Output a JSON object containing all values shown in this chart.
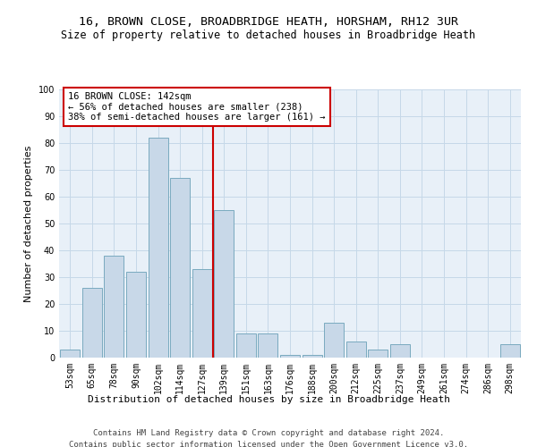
{
  "title1": "16, BROWN CLOSE, BROADBRIDGE HEATH, HORSHAM, RH12 3UR",
  "title2": "Size of property relative to detached houses in Broadbridge Heath",
  "xlabel": "Distribution of detached houses by size in Broadbridge Heath",
  "ylabel": "Number of detached properties",
  "categories": [
    "53sqm",
    "65sqm",
    "78sqm",
    "90sqm",
    "102sqm",
    "114sqm",
    "127sqm",
    "139sqm",
    "151sqm",
    "163sqm",
    "176sqm",
    "188sqm",
    "200sqm",
    "212sqm",
    "225sqm",
    "237sqm",
    "249sqm",
    "261sqm",
    "274sqm",
    "286sqm",
    "298sqm"
  ],
  "values": [
    3,
    26,
    38,
    32,
    82,
    67,
    33,
    55,
    9,
    9,
    1,
    1,
    13,
    6,
    3,
    5,
    0,
    0,
    0,
    0,
    5
  ],
  "bar_color": "#c8d8e8",
  "bar_edge_color": "#7aaabf",
  "highlight_index": 7,
  "highlight_color": "#cc0000",
  "annotation_text": "16 BROWN CLOSE: 142sqm\n← 56% of detached houses are smaller (238)\n38% of semi-detached houses are larger (161) →",
  "annotation_box_color": "#cc0000",
  "ylim": [
    0,
    100
  ],
  "yticks": [
    0,
    10,
    20,
    30,
    40,
    50,
    60,
    70,
    80,
    90,
    100
  ],
  "grid_color": "#c5d8e8",
  "bg_color": "#e8f0f8",
  "footer1": "Contains HM Land Registry data © Crown copyright and database right 2024.",
  "footer2": "Contains public sector information licensed under the Open Government Licence v3.0.",
  "title1_fontsize": 9.5,
  "title2_fontsize": 8.5,
  "xlabel_fontsize": 8,
  "ylabel_fontsize": 8,
  "tick_fontsize": 7,
  "annotation_fontsize": 7.5,
  "footer_fontsize": 6.5
}
